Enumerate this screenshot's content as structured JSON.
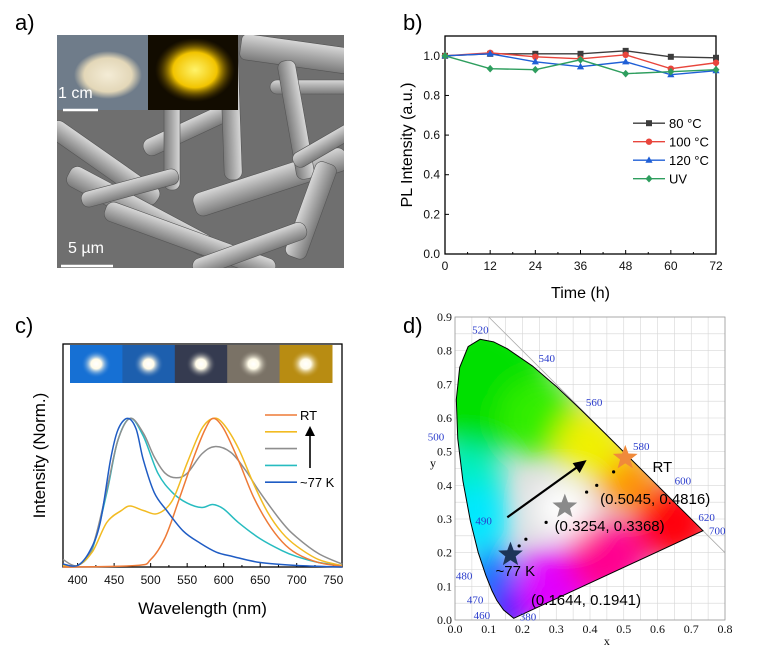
{
  "panels": {
    "a": {
      "label": "a)",
      "inset_scale": "1 cm",
      "sem_scale": "5 µm"
    },
    "b": {
      "label": "b)"
    },
    "c": {
      "label": "c)"
    },
    "d": {
      "label": "d)"
    }
  },
  "chart_data": [
    {
      "panel": "b",
      "type": "line",
      "xlabel": "Time (h)",
      "ylabel": "PL Intensity (a.u.)",
      "xlim": [
        0,
        72
      ],
      "ylim": [
        0,
        1.1
      ],
      "xticks": [
        "0",
        "12",
        "24",
        "36",
        "48",
        "60",
        "72"
      ],
      "yticks": [
        "0.0",
        "0.2",
        "0.4",
        "0.6",
        "0.8",
        "1.0"
      ],
      "x": [
        0,
        12,
        24,
        36,
        48,
        60,
        72
      ],
      "legend_position": "right",
      "series": [
        {
          "name": "80 °C",
          "color": "#3c3c3c",
          "marker": "square",
          "values": [
            1.0,
            1.01,
            1.01,
            1.01,
            1.025,
            0.995,
            0.99
          ]
        },
        {
          "name": "100 °C",
          "color": "#e8453c",
          "marker": "circle",
          "values": [
            1.0,
            1.015,
            0.995,
            0.985,
            1.005,
            0.935,
            0.965
          ]
        },
        {
          "name": "120 °C",
          "color": "#1f5fd6",
          "marker": "triangle",
          "values": [
            1.0,
            1.01,
            0.97,
            0.945,
            0.97,
            0.905,
            0.925
          ]
        },
        {
          "name": "UV",
          "color": "#2e9e5e",
          "marker": "diamond",
          "values": [
            1.0,
            0.935,
            0.93,
            0.98,
            0.91,
            0.92,
            0.93
          ]
        }
      ]
    },
    {
      "panel": "c",
      "type": "line",
      "xlabel": "Wavelength (nm)",
      "ylabel": "Intensity (Norm.)",
      "xlim": [
        380,
        762
      ],
      "ylim": [
        0,
        1.5
      ],
      "xticks": [
        "400",
        "450",
        "500",
        "550",
        "600",
        "650",
        "700",
        "750"
      ],
      "legend_position": "right",
      "legend_arrow": "up",
      "photo_colors": [
        "#1670d4",
        "#1d5fae",
        "#353b50",
        "#7a7266",
        "#b88c12"
      ],
      "series": [
        {
          "name": "RT",
          "color": "#ee7a36",
          "points": [
            [
              380,
              0
            ],
            [
              480,
              0.01
            ],
            [
              500,
              0.05
            ],
            [
              520,
              0.2
            ],
            [
              540,
              0.47
            ],
            [
              560,
              0.75
            ],
            [
              575,
              0.93
            ],
            [
              586,
              1.0
            ],
            [
              600,
              0.93
            ],
            [
              620,
              0.72
            ],
            [
              640,
              0.48
            ],
            [
              660,
              0.3
            ],
            [
              680,
              0.17
            ],
            [
              700,
              0.09
            ],
            [
              730,
              0.03
            ],
            [
              762,
              0.005
            ]
          ]
        },
        {
          "name": "",
          "color": "#f2bb22",
          "points": [
            [
              380,
              0.01
            ],
            [
              400,
              0.01
            ],
            [
              420,
              0.1
            ],
            [
              440,
              0.3
            ],
            [
              460,
              0.38
            ],
            [
              472,
              0.41
            ],
            [
              490,
              0.38
            ],
            [
              510,
              0.36
            ],
            [
              530,
              0.45
            ],
            [
              550,
              0.7
            ],
            [
              570,
              0.93
            ],
            [
              586,
              1.0
            ],
            [
              600,
              0.96
            ],
            [
              620,
              0.8
            ],
            [
              640,
              0.57
            ],
            [
              660,
              0.37
            ],
            [
              680,
              0.23
            ],
            [
              700,
              0.14
            ],
            [
              730,
              0.05
            ],
            [
              762,
              0.01
            ]
          ]
        },
        {
          "name": "",
          "color": "#8e8e8e",
          "points": [
            [
              380,
              0.05
            ],
            [
              400,
              0.01
            ],
            [
              420,
              0.13
            ],
            [
              440,
              0.52
            ],
            [
              455,
              0.85
            ],
            [
              472,
              1.0
            ],
            [
              490,
              0.9
            ],
            [
              505,
              0.74
            ],
            [
              520,
              0.63
            ],
            [
              535,
              0.6
            ],
            [
              550,
              0.63
            ],
            [
              570,
              0.76
            ],
            [
              588,
              0.81
            ],
            [
              610,
              0.77
            ],
            [
              630,
              0.65
            ],
            [
              650,
              0.5
            ],
            [
              680,
              0.3
            ],
            [
              700,
              0.2
            ],
            [
              730,
              0.09
            ],
            [
              762,
              0.02
            ]
          ]
        },
        {
          "name": "",
          "color": "#27bcc0",
          "points": [
            [
              380,
              0.01
            ],
            [
              400,
              0.01
            ],
            [
              420,
              0.12
            ],
            [
              440,
              0.5
            ],
            [
              455,
              0.85
            ],
            [
              472,
              1.0
            ],
            [
              490,
              0.88
            ],
            [
              510,
              0.63
            ],
            [
              530,
              0.5
            ],
            [
              550,
              0.43
            ],
            [
              570,
              0.4
            ],
            [
              585,
              0.42
            ],
            [
              600,
              0.39
            ],
            [
              620,
              0.3
            ],
            [
              650,
              0.19
            ],
            [
              680,
              0.11
            ],
            [
              700,
              0.07
            ],
            [
              730,
              0.03
            ],
            [
              762,
              0.01
            ]
          ]
        },
        {
          "name": "~77 K",
          "color": "#1f5cc4",
          "points": [
            [
              380,
              0.02
            ],
            [
              400,
              0.01
            ],
            [
              417,
              0.11
            ],
            [
              431,
              0.3
            ],
            [
              445,
              0.72
            ],
            [
              455,
              0.92
            ],
            [
              468,
              1.0
            ],
            [
              480,
              0.93
            ],
            [
              490,
              0.72
            ],
            [
              505,
              0.5
            ],
            [
              522,
              0.38
            ],
            [
              545,
              0.24
            ],
            [
              568,
              0.16
            ],
            [
              590,
              0.1
            ],
            [
              613,
              0.07
            ],
            [
              650,
              0.03
            ],
            [
              700,
              0.01
            ],
            [
              762,
              0.0
            ]
          ]
        }
      ]
    },
    {
      "panel": "d",
      "type": "scatter",
      "xlabel": "x",
      "ylabel": "y",
      "xlim": [
        0,
        0.8
      ],
      "ylim": [
        0,
        0.9
      ],
      "grid": true,
      "xticks": [
        "0.0",
        "0.1",
        "0.2",
        "0.3",
        "0.4",
        "0.5",
        "0.6",
        "0.7",
        "0.8"
      ],
      "yticks": [
        "0.0",
        "0.1",
        "0.2",
        "0.3",
        "0.4",
        "0.5",
        "0.6",
        "0.7",
        "0.8",
        "0.9"
      ],
      "wavelength_labels": [
        {
          "text": "520",
          "x": 0.0743,
          "y": 0.8338
        },
        {
          "text": "540",
          "x": 0.2296,
          "y": 0.7543
        },
        {
          "text": "560",
          "x": 0.3731,
          "y": 0.6245
        },
        {
          "text": "580",
          "x": 0.5125,
          "y": 0.4866
        },
        {
          "text": "600",
          "x": 0.627,
          "y": 0.3725
        },
        {
          "text": "620",
          "x": 0.6915,
          "y": 0.3083
        },
        {
          "text": "700",
          "x": 0.7347,
          "y": 0.2653
        },
        {
          "text": "500",
          "x": 0.0082,
          "y": 0.5384
        },
        {
          "text": "490",
          "x": 0.0454,
          "y": 0.295
        },
        {
          "text": "480",
          "x": 0.0913,
          "y": 0.1327
        },
        {
          "text": "470",
          "x": 0.1241,
          "y": 0.0578
        },
        {
          "text": "460",
          "x": 0.144,
          "y": 0.0297
        },
        {
          "text": "380",
          "x": 0.1741,
          "y": 0.005
        }
      ],
      "points": [
        {
          "name": "~77 K",
          "x": 0.1644,
          "y": 0.1941,
          "label": "(0.1644, 0.1941)",
          "color": "#1c3558"
        },
        {
          "name": "",
          "x": 0.3254,
          "y": 0.3368,
          "label": "(0.3254, 0.3368)",
          "color": "#8a8a8a"
        },
        {
          "name": "RT",
          "x": 0.5045,
          "y": 0.4816,
          "label": "(0.5045, 0.4816)",
          "color": "#f08a3a"
        }
      ],
      "intermediate_points": [
        [
          0.19,
          0.22
        ],
        [
          0.21,
          0.24
        ],
        [
          0.27,
          0.29
        ],
        [
          0.39,
          0.38
        ],
        [
          0.42,
          0.4
        ],
        [
          0.47,
          0.44
        ]
      ],
      "arrow": {
        "from": [
          0.155,
          0.305
        ],
        "to": [
          0.39,
          0.475
        ]
      }
    }
  ]
}
